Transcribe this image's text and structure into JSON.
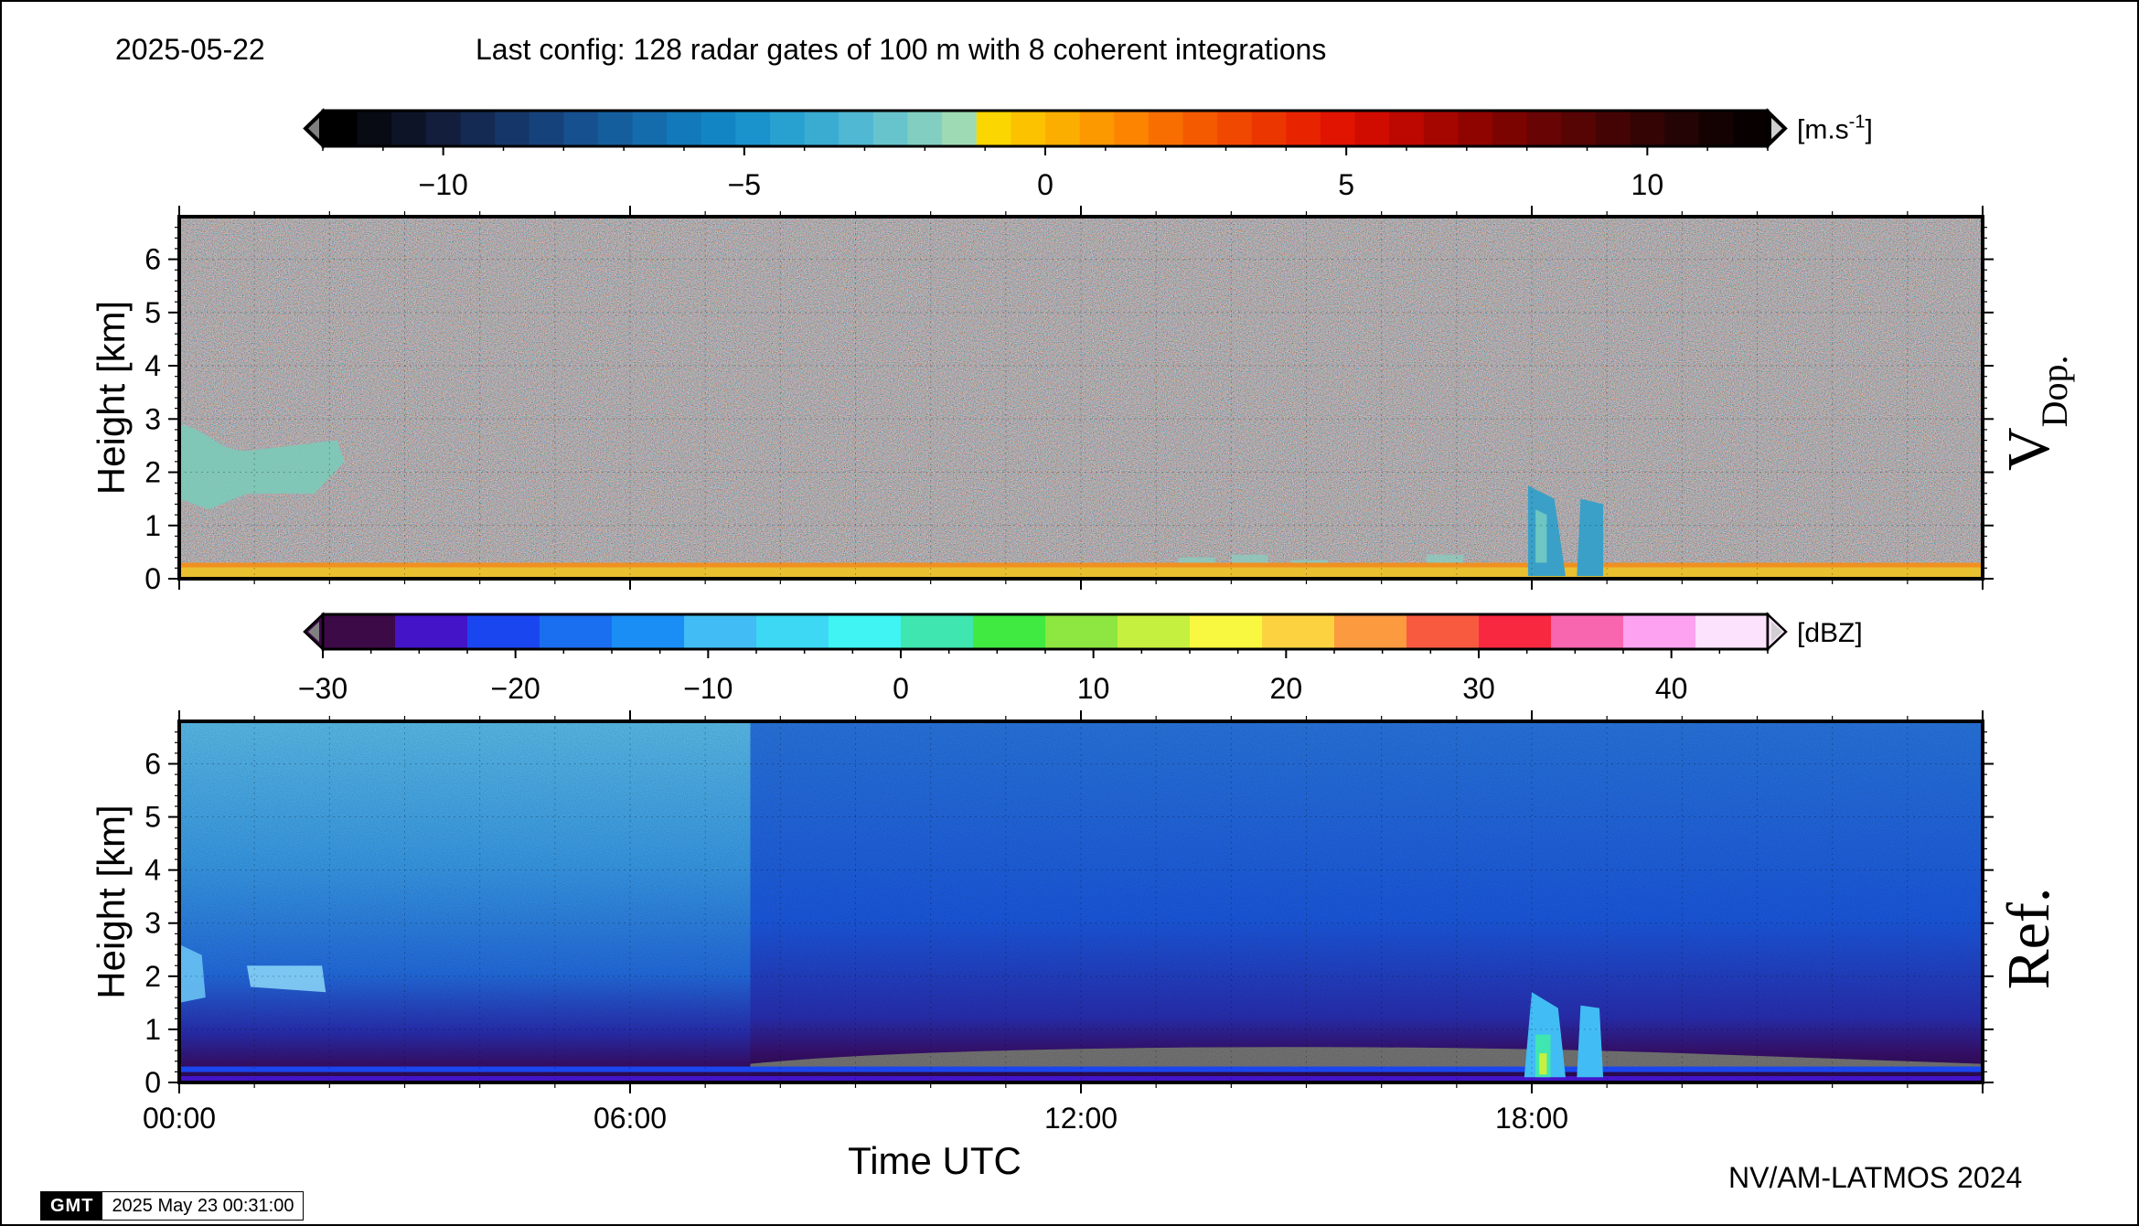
{
  "header": {
    "date": "2025-05-22",
    "config": "Last config: 128 radar gates of 100 m with 8 coherent integrations"
  },
  "footer": {
    "credit": "NV/AM-LATMOS 2024",
    "gmt_logo": "GMT",
    "timestamp": "2025 May 23 00:31:00"
  },
  "chart_data": [
    {
      "type": "heatmap",
      "panel": "doppler-velocity",
      "ylabel": "Height [km]",
      "panel_label": "V",
      "panel_label_sub": "Dop.",
      "x_ticks": [
        "00:00",
        "06:00",
        "12:00",
        "18:00"
      ],
      "xlim_hours": [
        0,
        24
      ],
      "ylim_km": [
        0,
        6.8
      ],
      "y_ticks": [
        "0",
        "1",
        "2",
        "3",
        "4",
        "5",
        "6"
      ],
      "colorbar": {
        "unit": "[m.s",
        "unit_sup": "-1",
        "unit_close": "]",
        "range": [
          -12,
          12
        ],
        "ticks": [
          "−10",
          "−5",
          "0",
          "5",
          "10"
        ],
        "tick_values": [
          -10,
          -5,
          0,
          5,
          10
        ],
        "colors": [
          "#000000",
          "#080a14",
          "#0e1428",
          "#121e3c",
          "#142a52",
          "#153668",
          "#16427c",
          "#16508e",
          "#155e9e",
          "#146cad",
          "#1279ba",
          "#1286c4",
          "#1a93cc",
          "#28a0d0",
          "#3aacd2",
          "#50b8d2",
          "#68c4cc",
          "#82cfc2",
          "#9edbb4",
          "#fcd600",
          "#fcc200",
          "#fcae00",
          "#fc9800",
          "#fc8400",
          "#f86e00",
          "#f45a00",
          "#f04800",
          "#ec3600",
          "#e82400",
          "#e01400",
          "#d00c00",
          "#bc0800",
          "#a60600",
          "#900400",
          "#7c0400",
          "#680404",
          "#560404",
          "#440404",
          "#340404",
          "#240404",
          "#140202",
          "#080000"
        ]
      },
      "annotations": [
        {
          "label": "cloud",
          "x_hours": [
            0,
            2.2
          ],
          "height_km": [
            1.3,
            2.8
          ]
        },
        {
          "label": "cloud",
          "x_hours": [
            17.9,
            19.0
          ],
          "height_km": [
            0.1,
            1.8
          ]
        },
        {
          "label": "noise",
          "description": "random velocities above ~0.3 km"
        }
      ]
    },
    {
      "type": "heatmap",
      "panel": "reflectivity",
      "ylabel": "Height [km]",
      "xlabel": "Time UTC",
      "panel_label": "Ref.",
      "x_ticks": [
        "00:00",
        "06:00",
        "12:00",
        "18:00"
      ],
      "xlim_hours": [
        0,
        24
      ],
      "ylim_km": [
        0,
        6.8
      ],
      "y_ticks": [
        "0",
        "1",
        "2",
        "3",
        "4",
        "5",
        "6"
      ],
      "colorbar": {
        "unit": "[dBZ]",
        "range": [
          -30,
          45
        ],
        "ticks": [
          "−30",
          "−20",
          "−10",
          "0",
          "10",
          "20",
          "30",
          "40"
        ],
        "tick_values": [
          -30,
          -20,
          -10,
          0,
          10,
          20,
          30,
          40
        ],
        "colors": [
          "#3c0a46",
          "#4414c8",
          "#1a46f0",
          "#1a6ef0",
          "#1a8ef4",
          "#42bcf4",
          "#3cd8f4",
          "#40f4f4",
          "#40e6b0",
          "#40ea40",
          "#8ee640",
          "#c6f040",
          "#f8f840",
          "#fcd240",
          "#fc9a40",
          "#f85a40",
          "#f82840",
          "#f866b0",
          "#fca2f0",
          "#fce2fc"
        ]
      },
      "annotations": [
        {
          "label": "cloud",
          "x_hours": [
            0,
            2.0
          ],
          "height_km": [
            1.5,
            2.6
          ]
        },
        {
          "label": "cloud",
          "x_hours": [
            17.9,
            19.0
          ],
          "height_km": [
            0.1,
            1.7
          ]
        }
      ]
    }
  ]
}
